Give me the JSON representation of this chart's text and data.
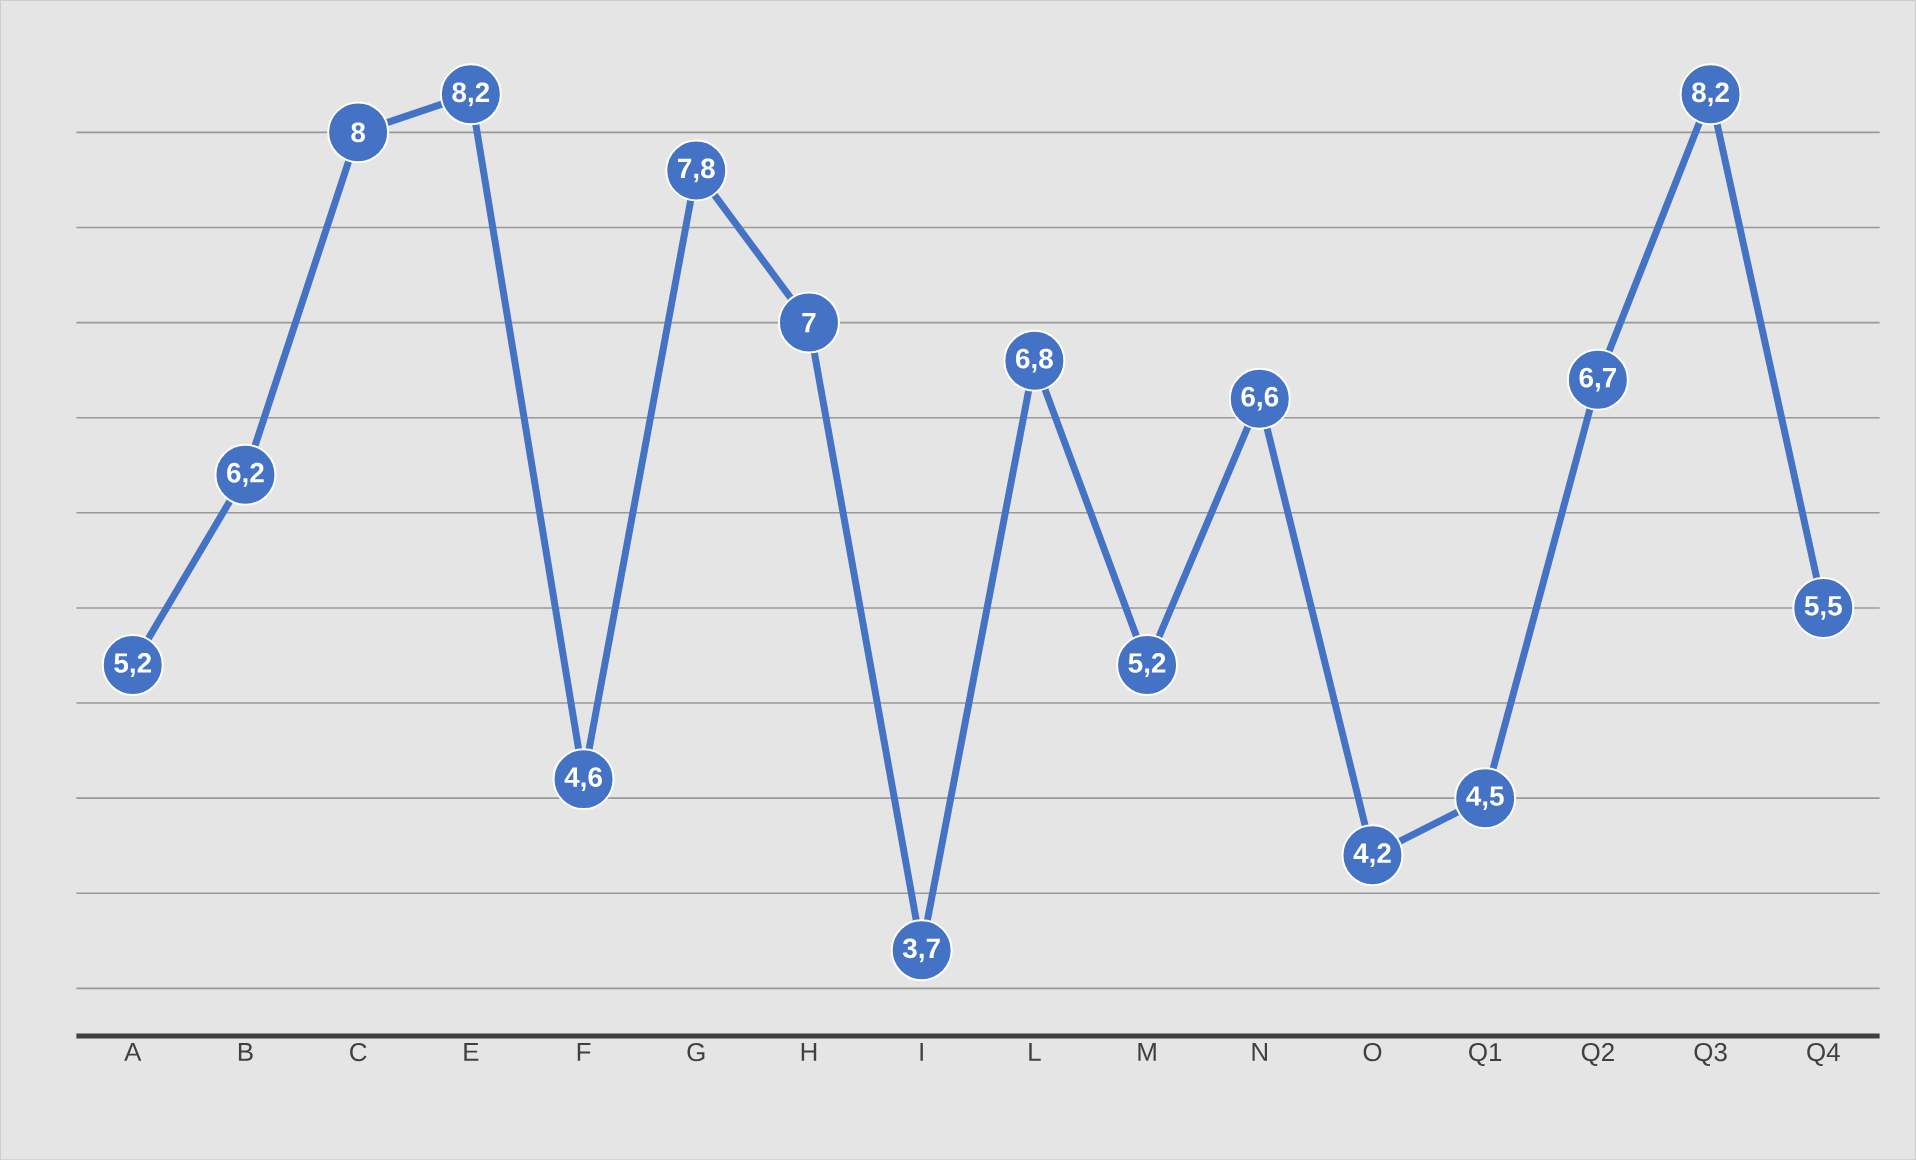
{
  "chart_data": {
    "type": "line",
    "categories": [
      "A",
      "B",
      "C",
      "E",
      "F",
      "G",
      "H",
      "I",
      "L",
      "M",
      "N",
      "O",
      "Q1",
      "Q2",
      "Q3",
      "Q4"
    ],
    "series": [
      {
        "color": "#4472c4",
        "values": [
          5.2,
          6.2,
          8,
          8.2,
          4.6,
          7.8,
          7,
          3.7,
          6.8,
          5.2,
          6.6,
          4.2,
          4.5,
          6.7,
          8.2,
          5.5
        ],
        "value_labels": [
          "5,2",
          "6,2",
          "8",
          "8,2",
          "4,6",
          "7,8",
          "7",
          "3,7",
          "6,8",
          "5,2",
          "6,6",
          "4,2",
          "4,5",
          "6,7",
          "8,2",
          "5,5"
        ]
      }
    ],
    "tick_labels": "x",
    "grid": "y",
    "marker": "circle",
    "line_style": "solid"
  }
}
